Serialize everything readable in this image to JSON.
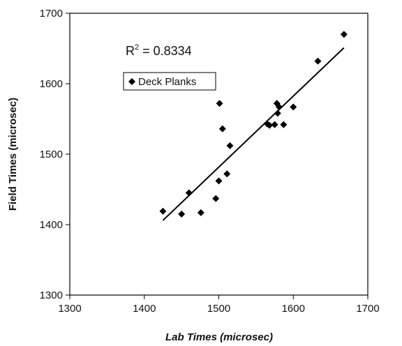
{
  "chart_data": {
    "type": "scatter",
    "title": "",
    "xlabel": "Lab Times (microsec)",
    "ylabel": "Field Times (microsec)",
    "xlim": [
      1300,
      1700
    ],
    "ylim": [
      1300,
      1700
    ],
    "xticks": [
      "1300",
      "1400",
      "1500",
      "1600",
      "1700"
    ],
    "yticks": [
      "1300",
      "1400",
      "1500",
      "1600",
      "1700"
    ],
    "grid": false,
    "legend_position": "top-left inside plot",
    "annotation": {
      "prefix": "R",
      "superscript": "2",
      "suffix": " = 0.8334"
    },
    "series": [
      {
        "name": "Deck Planks",
        "marker": "diamond",
        "color": "#000000",
        "points": [
          [
            1425,
            1419
          ],
          [
            1450,
            1415
          ],
          [
            1460,
            1445
          ],
          [
            1476,
            1417
          ],
          [
            1496,
            1437
          ],
          [
            1500,
            1462
          ],
          [
            1501,
            1572
          ],
          [
            1505,
            1536
          ],
          [
            1511,
            1472
          ],
          [
            1515,
            1512
          ],
          [
            1565,
            1543
          ],
          [
            1568,
            1541
          ],
          [
            1575,
            1542
          ],
          [
            1578,
            1572
          ],
          [
            1579,
            1558
          ],
          [
            1581,
            1567
          ],
          [
            1587,
            1542
          ],
          [
            1600,
            1567
          ],
          [
            1633,
            1632
          ],
          [
            1668,
            1670
          ]
        ]
      }
    ],
    "trendline": {
      "type": "linear",
      "color": "#000000",
      "start": [
        1425,
        1406
      ],
      "end": [
        1668,
        1651
      ]
    }
  }
}
